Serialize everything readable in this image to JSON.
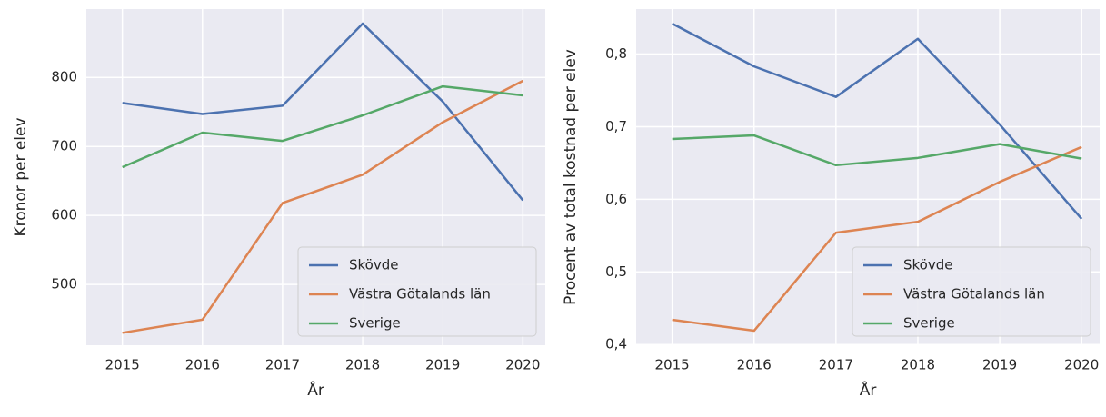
{
  "chart_data": [
    {
      "type": "line",
      "x_label": "År",
      "y_label": "Kronor per elev",
      "x": [
        2015,
        2016,
        2017,
        2018,
        2019,
        2020
      ],
      "xlim": [
        2014.55,
        2020.28
      ],
      "xticks": [
        2015,
        2016,
        2017,
        2018,
        2019,
        2020
      ],
      "ylim": [
        412,
        899
      ],
      "yticks": [
        500,
        600,
        700,
        800
      ],
      "grid": true,
      "legend": "lower right",
      "series": [
        {
          "name": "Skövde",
          "color": "#4c72b0",
          "values": [
            763,
            747,
            759,
            878,
            765,
            622
          ]
        },
        {
          "name": "Västra Götalands län",
          "color": "#dd8452",
          "values": [
            430,
            449,
            618,
            659,
            735,
            795
          ]
        },
        {
          "name": "Sverige",
          "color": "#55a868",
          "values": [
            670,
            720,
            708,
            745,
            787,
            774
          ]
        }
      ]
    },
    {
      "type": "line",
      "x_label": "År",
      "y_label": "Procent av total kostnad per elev",
      "x": [
        2015,
        2016,
        2017,
        2018,
        2019,
        2020
      ],
      "xlim": [
        2014.56,
        2020.22
      ],
      "xticks": [
        2015,
        2016,
        2017,
        2018,
        2019,
        2020
      ],
      "ylim": [
        0.399,
        0.862
      ],
      "yticks": [
        {
          "value": 0.4,
          "label": "0,4"
        },
        {
          "value": 0.5,
          "label": "0,5"
        },
        {
          "value": 0.6,
          "label": "0,6"
        },
        {
          "value": 0.7,
          "label": "0,7"
        },
        {
          "value": 0.8,
          "label": "0,8"
        }
      ],
      "grid": true,
      "legend": "lower right",
      "series": [
        {
          "name": "Skövde",
          "color": "#4c72b0",
          "values": [
            0.842,
            0.783,
            0.741,
            0.821,
            0.703,
            0.573
          ]
        },
        {
          "name": "Västra Götalands län",
          "color": "#dd8452",
          "values": [
            0.434,
            0.419,
            0.554,
            0.569,
            0.624,
            0.672
          ]
        },
        {
          "name": "Sverige",
          "color": "#55a868",
          "values": [
            0.683,
            0.688,
            0.647,
            0.657,
            0.676,
            0.656
          ]
        }
      ]
    }
  ]
}
